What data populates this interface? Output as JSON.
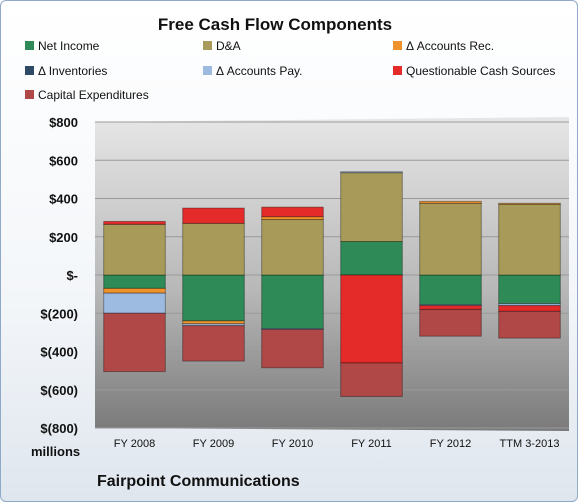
{
  "chart_data": {
    "type": "bar",
    "stacked": true,
    "title": "Free Cash Flow Components",
    "categories": [
      "FY 2008",
      "FY 2009",
      "FY 2010",
      "FY 2011",
      "FY 2012",
      "TTM 3-2013"
    ],
    "y_ticks": [
      "$800",
      "$600",
      "$400",
      "$200",
      "$-",
      "$(200)",
      "$(400)",
      "$(600)",
      "$(800)"
    ],
    "ylim": [
      -800,
      800
    ],
    "units_label": "millions",
    "legend_position": "top",
    "grid": true,
    "series": [
      {
        "name": "Net Income",
        "color": "#2e8b57",
        "values": [
          -70,
          -240,
          -280,
          175,
          -155,
          -150
        ]
      },
      {
        "name": "D&A",
        "color": "#a89a58",
        "values": [
          265,
          270,
          290,
          360,
          375,
          370
        ]
      },
      {
        "name": "Δ Accounts Rec.",
        "color": "#f0922a",
        "values": [
          -25,
          -15,
          15,
          0,
          10,
          5
        ]
      },
      {
        "name": "Δ Inventories",
        "color": "#2f4a66",
        "values": [
          0,
          0,
          0,
          0,
          0,
          0
        ]
      },
      {
        "name": "Δ Accounts Pay.",
        "color": "#9dbbe0",
        "values": [
          -105,
          -10,
          -5,
          5,
          -5,
          -10
        ]
      },
      {
        "name": "Questionable Cash Sources",
        "color": "#e52a2a",
        "values": [
          15,
          80,
          50,
          -460,
          -20,
          -30
        ]
      },
      {
        "name": "Capital Expenditures",
        "color": "#b04848",
        "values": [
          -305,
          -185,
          -200,
          -175,
          -140,
          -140
        ]
      }
    ]
  },
  "footer": {
    "company": "Fairpoint Communications"
  }
}
